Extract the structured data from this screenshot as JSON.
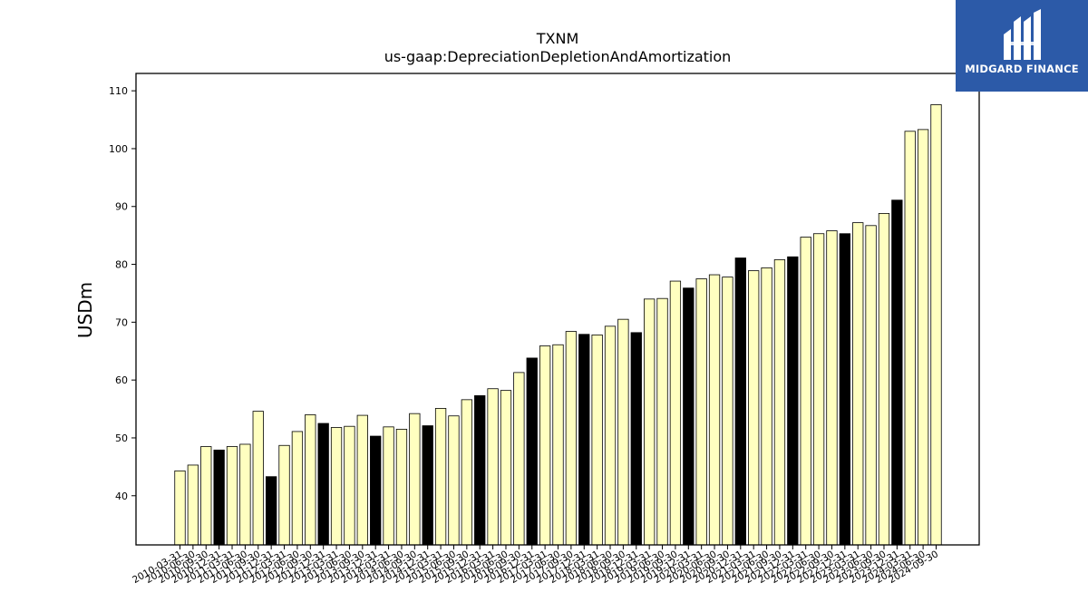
{
  "chart_data": {
    "type": "bar",
    "title": "TXNM",
    "subtitle": "us-gaap:DepreciationDepletionAndAmortization",
    "ylabel": "USDm",
    "xlabel": "",
    "ylim": [
      31.5,
      113
    ],
    "yticks": [
      40,
      50,
      60,
      70,
      80,
      90,
      100,
      110
    ],
    "grid": false,
    "colors": {
      "bar": "#ffffc0",
      "bar_highlight": "#000000",
      "edge": "#000000"
    },
    "categories": [
      "2010-03-31",
      "2010-06-30",
      "2010-09-30",
      "2010-12-31",
      "2011-03-31",
      "2011-06-30",
      "2011-09-30",
      "2011-12-31",
      "2012-03-31",
      "2012-06-30",
      "2012-09-30",
      "2012-12-31",
      "2013-03-31",
      "2013-06-30",
      "2013-09-30",
      "2013-12-31",
      "2014-03-31",
      "2014-06-30",
      "2014-09-30",
      "2014-12-31",
      "2015-03-31",
      "2015-06-30",
      "2015-09-30",
      "2015-12-31",
      "2016-03-31",
      "2016-06-30",
      "2016-09-30",
      "2016-12-31",
      "2017-03-31",
      "2017-06-30",
      "2017-09-30",
      "2017-12-31",
      "2018-03-31",
      "2018-06-30",
      "2018-09-30",
      "2018-12-31",
      "2019-03-31",
      "2019-06-30",
      "2019-09-30",
      "2019-12-31",
      "2020-03-31",
      "2020-06-30",
      "2020-09-30",
      "2020-12-31",
      "2021-03-31",
      "2021-06-30",
      "2021-09-30",
      "2021-12-31",
      "2022-03-31",
      "2022-06-30",
      "2022-09-30",
      "2022-12-31",
      "2023-03-31",
      "2023-06-30",
      "2023-09-30",
      "2023-12-31",
      "2024-03-31",
      "2024-06-30",
      "2024-09-30"
    ],
    "values": [
      44.3,
      45.3,
      48.5,
      47.9,
      48.5,
      48.9,
      54.6,
      43.3,
      48.7,
      51.1,
      54.0,
      52.5,
      51.8,
      52.0,
      53.9,
      50.3,
      51.9,
      51.5,
      54.2,
      52.1,
      55.1,
      53.8,
      56.6,
      57.3,
      58.5,
      58.2,
      61.3,
      63.8,
      65.9,
      66.1,
      68.4,
      67.9,
      67.8,
      69.3,
      70.5,
      68.2,
      74.0,
      74.1,
      77.1,
      75.9,
      77.5,
      78.2,
      77.8,
      81.1,
      78.9,
      79.4,
      80.8,
      81.3,
      84.7,
      85.3,
      85.8,
      85.3,
      87.2,
      86.7,
      88.8,
      91.1,
      103.0,
      103.3,
      107.6
    ],
    "highlight": [
      false,
      false,
      false,
      true,
      false,
      false,
      false,
      true,
      false,
      false,
      false,
      true,
      false,
      false,
      false,
      true,
      false,
      false,
      false,
      true,
      false,
      false,
      false,
      true,
      false,
      false,
      false,
      true,
      false,
      false,
      false,
      true,
      false,
      false,
      false,
      true,
      false,
      false,
      false,
      true,
      false,
      false,
      false,
      true,
      false,
      false,
      false,
      true,
      false,
      false,
      false,
      true,
      false,
      false,
      false,
      true,
      false,
      false,
      false
    ]
  },
  "logo": {
    "text": "MIDGARD FINANCE",
    "background": "#2c5aa8"
  }
}
